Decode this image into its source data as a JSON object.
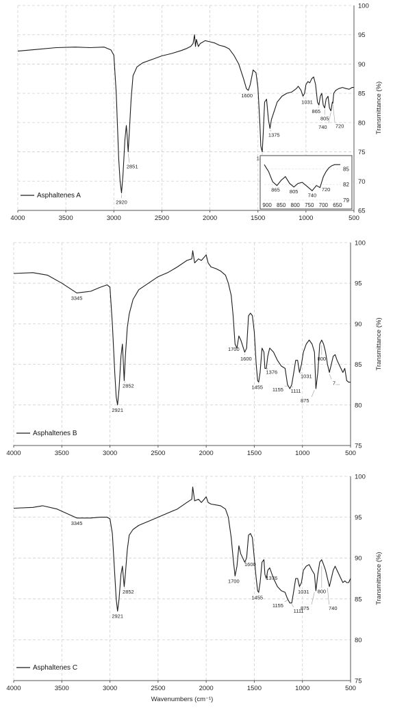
{
  "chart_data": [
    {
      "type": "line",
      "legend": "Asphaltenes A",
      "legend_position": "bottom-left",
      "grid": true,
      "xlim": [
        4000,
        500
      ],
      "ylim": [
        65,
        100
      ],
      "ylabel": "Transmittance (%)",
      "xticks": [
        4000,
        3500,
        3000,
        2500,
        2000,
        1500,
        1000,
        500
      ],
      "yticks": [
        65,
        70,
        75,
        80,
        85,
        90,
        95,
        100
      ],
      "x": [
        4000,
        3800,
        3600,
        3400,
        3250,
        3100,
        3030,
        3000,
        2975,
        2950,
        2935,
        2920,
        2905,
        2885,
        2870,
        2862,
        2851,
        2840,
        2820,
        2800,
        2760,
        2700,
        2600,
        2500,
        2400,
        2300,
        2250,
        2200,
        2175,
        2160,
        2150,
        2140,
        2120,
        2100,
        2050,
        2000,
        1950,
        1900,
        1850,
        1800,
        1750,
        1700,
        1650,
        1620,
        1600,
        1580,
        1550,
        1520,
        1500,
        1480,
        1470,
        1455,
        1445,
        1430,
        1410,
        1390,
        1375,
        1360,
        1330,
        1300,
        1250,
        1200,
        1150,
        1100,
        1080,
        1050,
        1031,
        1015,
        1000,
        980,
        960,
        940,
        920,
        900,
        880,
        865,
        850,
        835,
        820,
        805,
        790,
        770,
        755,
        740,
        725,
        720,
        710,
        690,
        660,
        620,
        580,
        550,
        520,
        500
      ],
      "y": [
        92.2,
        92.5,
        92.8,
        92.9,
        92.8,
        92.9,
        92.4,
        91.5,
        85,
        74,
        70,
        68,
        71,
        77,
        79.5,
        78,
        75,
        78,
        84,
        88,
        89.5,
        90.2,
        90.8,
        91.4,
        91.8,
        92.3,
        92.6,
        93,
        93.5,
        95,
        93,
        94.2,
        93,
        93.5,
        94,
        93.8,
        93.6,
        93.2,
        93,
        92.6,
        91.5,
        90,
        87.5,
        85.8,
        85.5,
        86.5,
        89,
        88.5,
        86,
        80,
        76,
        75,
        78,
        83.5,
        84,
        80.5,
        79,
        80.5,
        82,
        83.5,
        84.5,
        85,
        85.2,
        85.8,
        86.2,
        85.5,
        84.5,
        85,
        86.5,
        87,
        86.8,
        87.5,
        87.8,
        86.5,
        83.5,
        83,
        84.5,
        85,
        83,
        82.5,
        84,
        84.5,
        82.5,
        82,
        83.5,
        83.3,
        85,
        85.5,
        85.8,
        86,
        85.8,
        85.7,
        86,
        86
      ],
      "annotations": [
        {
          "label": "2920",
          "x": 2920,
          "y": 68
        },
        {
          "label": "2851",
          "x": 2851,
          "y": 75
        },
        {
          "label": "1600",
          "x": 1600,
          "y": 85.5
        },
        {
          "label": "1455",
          "x": 1455,
          "y": 75
        },
        {
          "label": "1375",
          "x": 1375,
          "y": 79
        },
        {
          "label": "1031",
          "x": 1031,
          "y": 84.5
        },
        {
          "label": "865",
          "x": 865,
          "y": 83
        },
        {
          "label": "805",
          "x": 805,
          "y": 82.5
        },
        {
          "label": "740",
          "x": 740,
          "y": 82
        },
        {
          "label": "720",
          "x": 720,
          "y": 83.3
        }
      ],
      "inset": {
        "xlim": [
          910,
          640
        ],
        "ylim": [
          79,
          87
        ],
        "xticks": [
          900,
          850,
          800,
          750,
          700,
          650
        ],
        "yticks": [
          79,
          82,
          85
        ],
        "x": [
          910,
          895,
          880,
          865,
          850,
          835,
          820,
          805,
          790,
          775,
          755,
          740,
          725,
          712,
          700,
          690,
          680,
          670,
          660,
          650,
          640
        ],
        "y": [
          85.8,
          84.5,
          82.5,
          81.8,
          82.8,
          83.5,
          82.2,
          81.5,
          82.2,
          82.4,
          81.5,
          80.8,
          81.8,
          81.4,
          83.5,
          84.5,
          85.2,
          85.6,
          85.8,
          85.8,
          85.8
        ],
        "annotations": [
          {
            "label": "865",
            "x": 865,
            "y": 81.8
          },
          {
            "label": "805",
            "x": 805,
            "y": 81.5
          },
          {
            "label": "740",
            "x": 740,
            "y": 80.8
          },
          {
            "label": "720",
            "x": 720,
            "y": 81.5
          }
        ]
      }
    },
    {
      "type": "line",
      "legend": "Asphaltenes B",
      "legend_position": "bottom-left",
      "grid": true,
      "xlim": [
        4000,
        500
      ],
      "ylim": [
        75,
        100
      ],
      "ylabel": "Transmittance (%)",
      "xticks": [
        4000,
        3500,
        3000,
        2500,
        2000,
        1500,
        1000,
        500
      ],
      "yticks": [
        75,
        80,
        85,
        90,
        95,
        100
      ],
      "x": [
        4000,
        3800,
        3650,
        3500,
        3345,
        3200,
        3100,
        3030,
        3000,
        2975,
        2950,
        2935,
        2921,
        2905,
        2885,
        2870,
        2852,
        2840,
        2820,
        2800,
        2760,
        2700,
        2600,
        2500,
        2400,
        2300,
        2200,
        2150,
        2140,
        2120,
        2080,
        2050,
        2020,
        2000,
        1980,
        1950,
        1900,
        1850,
        1800,
        1770,
        1740,
        1720,
        1700,
        1680,
        1660,
        1640,
        1600,
        1580,
        1560,
        1540,
        1520,
        1500,
        1480,
        1465,
        1455,
        1440,
        1420,
        1400,
        1390,
        1376,
        1360,
        1340,
        1300,
        1260,
        1220,
        1180,
        1155,
        1130,
        1111,
        1090,
        1070,
        1050,
        1031,
        1010,
        990,
        960,
        930,
        900,
        875,
        860,
        840,
        820,
        800,
        780,
        760,
        740,
        720,
        700,
        680,
        660,
        640,
        620,
        600,
        580,
        560,
        540,
        520,
        500
      ],
      "y": [
        96.2,
        96.3,
        96,
        95,
        93.8,
        94,
        94.5,
        94.8,
        94.5,
        90,
        84,
        81,
        80,
        82,
        86,
        87.5,
        83,
        86,
        89.5,
        91.2,
        93,
        94.2,
        95,
        95.8,
        96.3,
        97,
        97.8,
        98,
        99,
        97.5,
        98,
        97.8,
        98.2,
        98.5,
        97.5,
        97,
        96.8,
        96.5,
        96,
        95,
        93.5,
        91,
        87.5,
        87,
        88.5,
        88,
        86.5,
        87,
        91,
        91.3,
        91,
        89,
        85,
        83,
        82.8,
        84,
        87,
        86.5,
        84.5,
        84.5,
        86,
        87,
        86.5,
        85.5,
        84.8,
        84.5,
        82.5,
        82,
        82.5,
        84,
        85.5,
        85.5,
        84,
        85,
        86.5,
        87.5,
        88,
        87.5,
        86.5,
        82,
        84,
        87.5,
        88,
        87.5,
        86.5,
        85,
        84,
        85,
        86,
        86.2,
        85.5,
        85,
        84.5,
        84,
        84.5,
        83,
        82.8,
        82.8
      ],
      "annotations": [
        {
          "label": "3345",
          "x": 3345,
          "y": 93.8
        },
        {
          "label": "2921",
          "x": 2921,
          "y": 80
        },
        {
          "label": "2852",
          "x": 2852,
          "y": 83
        },
        {
          "label": "1700",
          "x": 1700,
          "y": 87.5
        },
        {
          "label": "1600",
          "x": 1600,
          "y": 86.5
        },
        {
          "label": "1455",
          "x": 1455,
          "y": 82.8
        },
        {
          "label": "1376",
          "x": 1376,
          "y": 84.5
        },
        {
          "label": "1155",
          "x": 1155,
          "y": 82.5
        },
        {
          "label": "1111",
          "x": 1111,
          "y": 82.5
        },
        {
          "label": "1031",
          "x": 1031,
          "y": 84
        },
        {
          "label": "875",
          "x": 875,
          "y": 82
        },
        {
          "label": "800",
          "x": 800,
          "y": 87.5
        },
        {
          "label": "7...",
          "x": 720,
          "y": 84
        }
      ]
    },
    {
      "type": "line",
      "legend": "Asphaltenes C",
      "legend_position": "bottom-left",
      "grid": true,
      "xlim": [
        4000,
        500
      ],
      "ylim": [
        75,
        100
      ],
      "xlabel": "Wavenumbers (cm⁻¹)",
      "ylabel": "Transmittance (%)",
      "xticks": [
        4000,
        3500,
        3000,
        2500,
        2000,
        1500,
        1000,
        500
      ],
      "yticks": [
        75,
        80,
        85,
        90,
        95,
        100
      ],
      "x": [
        4000,
        3800,
        3700,
        3550,
        3345,
        3200,
        3100,
        3030,
        3000,
        2975,
        2950,
        2935,
        2921,
        2905,
        2885,
        2870,
        2852,
        2840,
        2820,
        2800,
        2760,
        2700,
        2600,
        2500,
        2400,
        2300,
        2200,
        2150,
        2140,
        2120,
        2080,
        2050,
        2020,
        2000,
        1980,
        1950,
        1900,
        1850,
        1800,
        1770,
        1740,
        1720,
        1700,
        1680,
        1660,
        1640,
        1600,
        1580,
        1560,
        1540,
        1520,
        1500,
        1480,
        1465,
        1455,
        1440,
        1420,
        1400,
        1390,
        1376,
        1360,
        1340,
        1300,
        1260,
        1220,
        1180,
        1155,
        1130,
        1111,
        1090,
        1070,
        1050,
        1031,
        1010,
        990,
        960,
        930,
        900,
        875,
        860,
        840,
        820,
        800,
        780,
        760,
        740,
        720,
        700,
        680,
        660,
        640,
        620,
        600,
        580,
        560,
        540,
        520,
        500
      ],
      "y": [
        96.1,
        96.2,
        96.4,
        96,
        94.9,
        94.9,
        95,
        95,
        94.8,
        93,
        88,
        85,
        83.5,
        85,
        88,
        89,
        86.5,
        88,
        91,
        92.8,
        93.5,
        94,
        94.5,
        95,
        95.5,
        96,
        96.8,
        97.2,
        98.7,
        97,
        97.2,
        96.8,
        97.2,
        97.5,
        96.8,
        96.6,
        96.5,
        96.4,
        96,
        95,
        92.5,
        90,
        87.8,
        89,
        91.5,
        90.5,
        89.5,
        90,
        92.8,
        93,
        92.5,
        90,
        87.5,
        86,
        85.8,
        87,
        89.5,
        89.8,
        88,
        87.5,
        88.5,
        88.8,
        87.5,
        86.5,
        86,
        85.8,
        85,
        84.5,
        84.5,
        86,
        87.5,
        87.5,
        86.5,
        87,
        88.5,
        89,
        89.2,
        88.5,
        88,
        86,
        88,
        89.5,
        89.8,
        89.2,
        88.5,
        87.5,
        86.5,
        87.5,
        88.5,
        89,
        88.5,
        88,
        87.5,
        87,
        87.2,
        87,
        87,
        87.5
      ],
      "annotations": [
        {
          "label": "3345",
          "x": 3345,
          "y": 94.9
        },
        {
          "label": "2921",
          "x": 2921,
          "y": 83.5
        },
        {
          "label": "2852",
          "x": 2852,
          "y": 86.5
        },
        {
          "label": "1700",
          "x": 1700,
          "y": 87.8
        },
        {
          "label": "1600",
          "x": 1600,
          "y": 89.5
        },
        {
          "label": "1455",
          "x": 1455,
          "y": 85.8
        },
        {
          "label": "1376",
          "x": 1376,
          "y": 87.5
        },
        {
          "label": "1155",
          "x": 1155,
          "y": 85
        },
        {
          "label": "1111",
          "x": 1111,
          "y": 84.5
        },
        {
          "label": "1031",
          "x": 1031,
          "y": 86.5
        },
        {
          "label": "875",
          "x": 875,
          "y": 86
        },
        {
          "label": "800",
          "x": 800,
          "y": 89.2
        },
        {
          "label": "740",
          "x": 740,
          "y": 86.5
        }
      ]
    }
  ]
}
